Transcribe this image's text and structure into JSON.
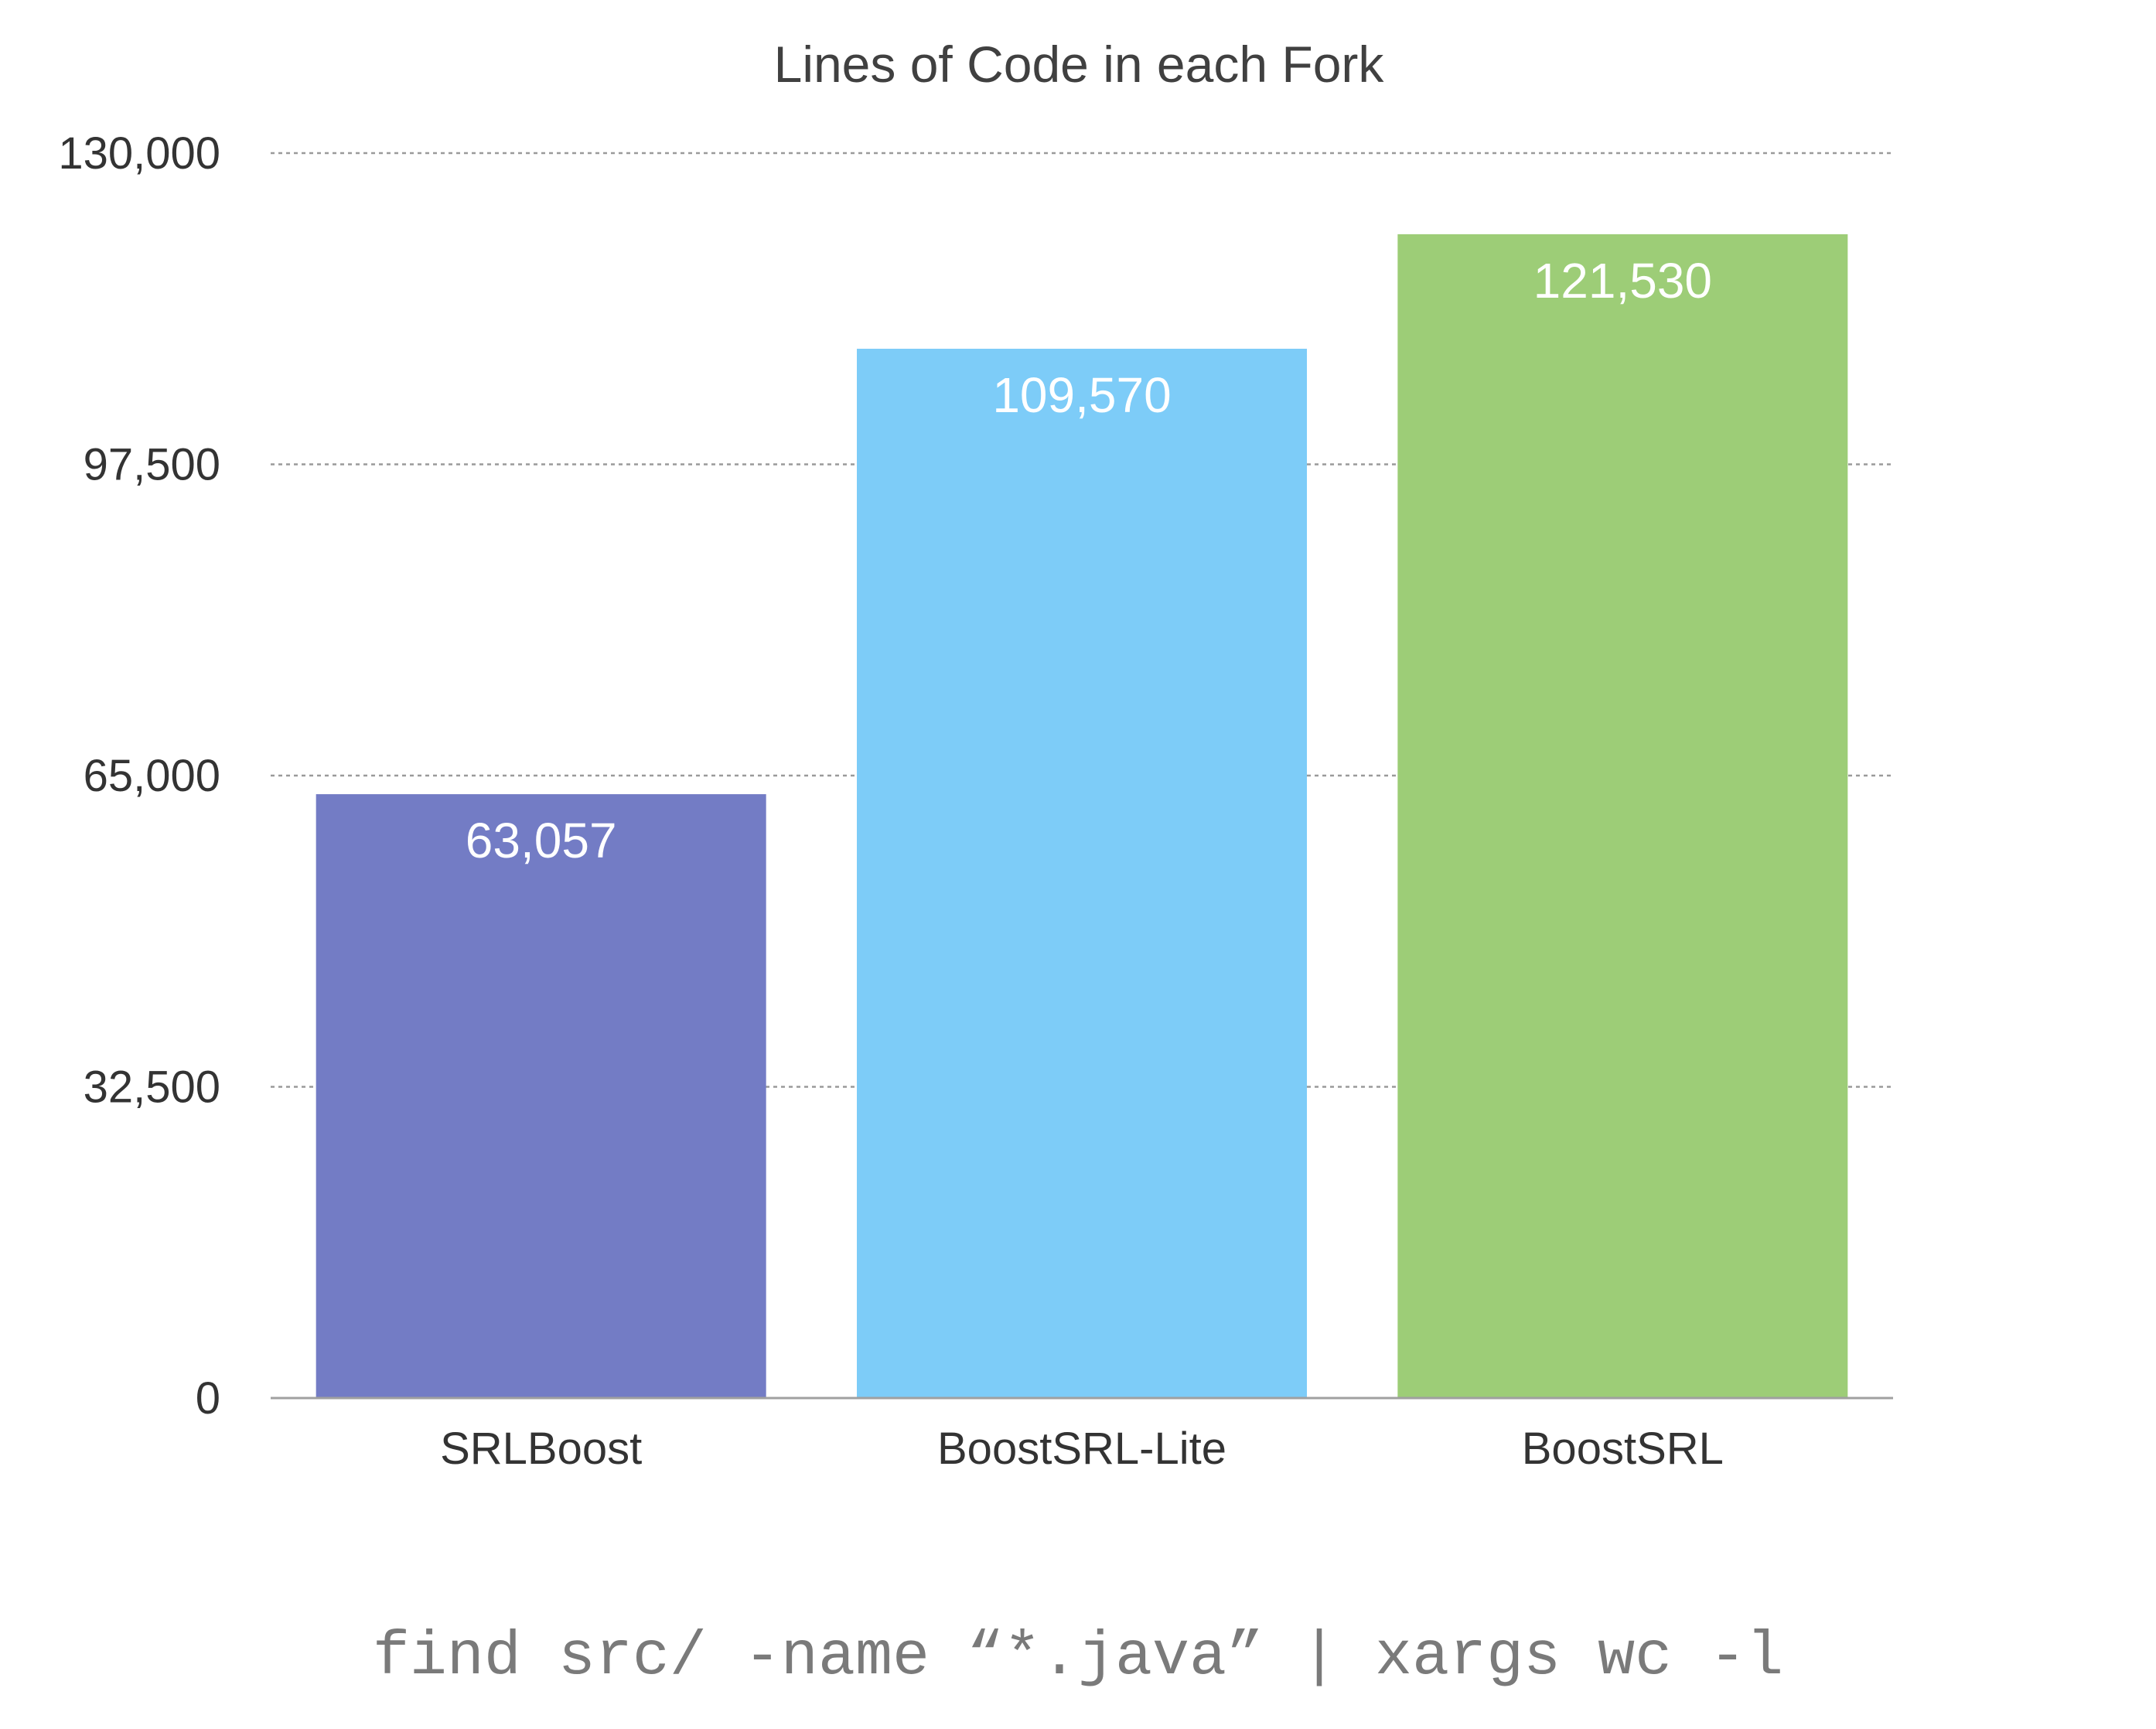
{
  "chart_data": {
    "type": "bar",
    "title": "Lines of Code in each Fork",
    "xlabel": "",
    "ylabel": "",
    "categories": [
      "SRLBoost",
      "BoostSRL-Lite",
      "BoostSRL"
    ],
    "values": [
      63057,
      109570,
      121530
    ],
    "value_labels": [
      "63,057",
      "109,570",
      "121,530"
    ],
    "colors": [
      "#737cc5",
      "#7dccf8",
      "#9dcd77"
    ],
    "ylim": [
      0,
      130000
    ],
    "yticks": [
      0,
      32500,
      65000,
      97500,
      130000
    ],
    "ytick_labels": [
      "0",
      "32,500",
      "65,000",
      "97,500",
      "130,000"
    ],
    "grid": true,
    "legend": "none"
  },
  "footnote": "find src/ -name “*.java” | xargs wc -l"
}
